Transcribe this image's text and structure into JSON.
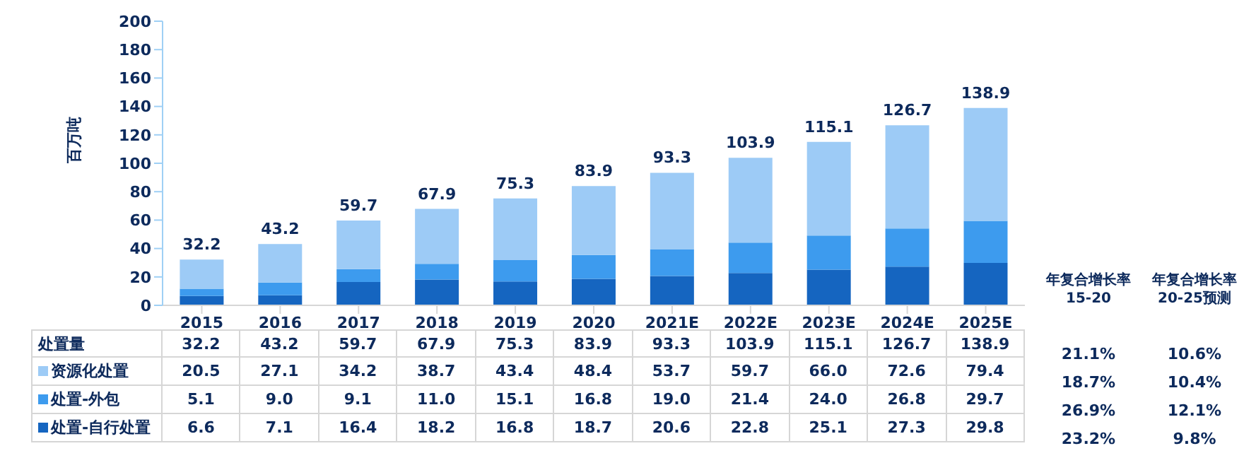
{
  "chart_data": {
    "type": "bar",
    "stacked": true,
    "ylabel": "百万吨",
    "categories": [
      "2015",
      "2016",
      "2017",
      "2018",
      "2019",
      "2020",
      "2021E",
      "2022E",
      "2023E",
      "2024E",
      "2025E"
    ],
    "series": [
      {
        "name": "处置-自行处置",
        "color": "#1565c0",
        "values": [
          6.6,
          7.1,
          16.4,
          18.2,
          16.8,
          18.7,
          20.6,
          22.8,
          25.1,
          27.3,
          29.8
        ],
        "value_labels": [
          "6.6",
          "7.1",
          "16.4",
          "18.2",
          "16.8",
          "18.7",
          "20.6",
          "22.8",
          "25.1",
          "27.3",
          "29.8"
        ]
      },
      {
        "name": "处置-外包",
        "color": "#3d9bee",
        "values": [
          5.1,
          9.0,
          9.1,
          11.0,
          15.1,
          16.8,
          19.0,
          21.4,
          24.0,
          26.8,
          29.7
        ],
        "value_labels": [
          "5.1",
          "9.0",
          "9.1",
          "11.0",
          "15.1",
          "16.8",
          "19.0",
          "21.4",
          "24.0",
          "26.8",
          "29.7"
        ]
      },
      {
        "name": "资源化处置",
        "color": "#9dcbf6",
        "values": [
          20.5,
          27.1,
          34.2,
          38.7,
          43.4,
          48.4,
          53.7,
          59.7,
          66.0,
          72.6,
          79.4
        ],
        "value_labels": [
          "20.5",
          "27.1",
          "34.2",
          "38.7",
          "43.4",
          "48.4",
          "53.7",
          "59.7",
          "66.0",
          "72.6",
          "79.4"
        ]
      }
    ],
    "totals": [
      "32.2",
      "43.2",
      "59.7",
      "67.9",
      "75.3",
      "83.9",
      "93.3",
      "103.9",
      "115.1",
      "126.7",
      "138.9"
    ],
    "ylim": [
      0,
      200
    ],
    "yticks": [
      0,
      20,
      40,
      60,
      80,
      100,
      120,
      140,
      160,
      180,
      200
    ],
    "legend": "bottom",
    "annotations": [
      "处置量",
      "年复合增长率\n15-20",
      "年复合增长率\n20-25预测",
      "21.1%",
      "10.6%",
      "18.7%",
      "10.4%",
      "26.9%",
      "12.1%",
      "23.2%",
      "9.8%"
    ]
  }
}
